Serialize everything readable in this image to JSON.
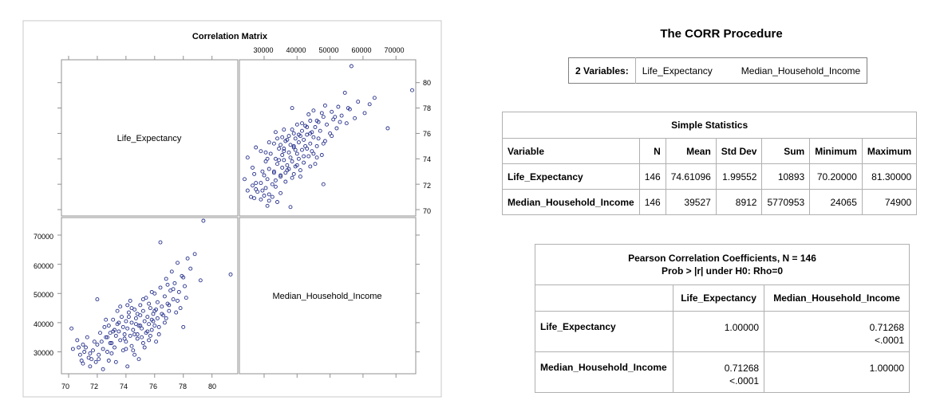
{
  "chart_data": {
    "type": "scatter",
    "title": "Correlation Matrix",
    "variables": [
      "Life_Expectancy",
      "Median_Household_Income"
    ],
    "axes": {
      "life_expectancy": {
        "range": [
          69.5,
          81.8
        ],
        "ticks": [
          70,
          72,
          74,
          76,
          78,
          80
        ]
      },
      "median_household_income": {
        "range": [
          22500,
          76000
        ],
        "ticks": [
          30000,
          40000,
          50000,
          60000,
          70000
        ]
      }
    },
    "marker_color": "#28328c",
    "points": [
      [
        70.2,
        38000
      ],
      [
        70.3,
        31000
      ],
      [
        70.6,
        34000
      ],
      [
        70.8,
        29000
      ],
      [
        70.9,
        27000
      ],
      [
        71.0,
        26000
      ],
      [
        71.1,
        30000
      ],
      [
        71.2,
        31500
      ],
      [
        71.4,
        28000
      ],
      [
        71.5,
        25000
      ],
      [
        71.6,
        27500
      ],
      [
        71.7,
        30500
      ],
      [
        71.9,
        26500
      ],
      [
        72.0,
        32500
      ],
      [
        72.0,
        48000
      ],
      [
        72.1,
        29000
      ],
      [
        72.3,
        33500
      ],
      [
        72.4,
        31000
      ],
      [
        72.5,
        38500
      ],
      [
        72.6,
        35000
      ],
      [
        72.7,
        30000
      ],
      [
        72.8,
        27000
      ],
      [
        72.8,
        39000
      ],
      [
        72.9,
        36500
      ],
      [
        73.0,
        33000
      ],
      [
        73.1,
        41000
      ],
      [
        73.2,
        31500
      ],
      [
        73.3,
        35500
      ],
      [
        73.3,
        26500
      ],
      [
        73.4,
        39500
      ],
      [
        73.5,
        37000
      ],
      [
        73.6,
        34000
      ],
      [
        73.7,
        42000
      ],
      [
        73.8,
        30500
      ],
      [
        73.9,
        36000
      ],
      [
        74.0,
        40500
      ],
      [
        74.0,
        33500
      ],
      [
        74.1,
        38000
      ],
      [
        74.1,
        25000
      ],
      [
        74.2,
        43500
      ],
      [
        74.3,
        35500
      ],
      [
        74.4,
        32000
      ],
      [
        74.4,
        40000
      ],
      [
        74.5,
        37500
      ],
      [
        74.6,
        44500
      ],
      [
        74.6,
        29000
      ],
      [
        74.7,
        41500
      ],
      [
        74.8,
        36000
      ],
      [
        74.8,
        34500
      ],
      [
        74.9,
        39000
      ],
      [
        75.0,
        46000
      ],
      [
        75.0,
        42500
      ],
      [
        75.1,
        38000
      ],
      [
        75.2,
        33000
      ],
      [
        75.2,
        44000
      ],
      [
        75.3,
        40500
      ],
      [
        75.4,
        36500
      ],
      [
        75.4,
        48500
      ],
      [
        75.5,
        42000
      ],
      [
        75.6,
        39500
      ],
      [
        75.6,
        34000
      ],
      [
        75.7,
        45000
      ],
      [
        75.8,
        41000
      ],
      [
        75.8,
        37500
      ],
      [
        75.9,
        43000
      ],
      [
        76.0,
        50000
      ],
      [
        76.0,
        39000
      ],
      [
        76.1,
        44500
      ],
      [
        76.2,
        47000
      ],
      [
        76.2,
        41500
      ],
      [
        76.3,
        36000
      ],
      [
        76.4,
        52000
      ],
      [
        76.5,
        45500
      ],
      [
        76.6,
        42500
      ],
      [
        76.7,
        49000
      ],
      [
        76.8,
        55000
      ],
      [
        76.9,
        46500
      ],
      [
        77.0,
        44000
      ],
      [
        77.1,
        51000
      ],
      [
        77.2,
        57500
      ],
      [
        77.3,
        48000
      ],
      [
        77.4,
        53500
      ],
      [
        77.6,
        60500
      ],
      [
        77.7,
        50500
      ],
      [
        77.9,
        56000
      ],
      [
        78.0,
        38500
      ],
      [
        78.1,
        52500
      ],
      [
        78.3,
        62000
      ],
      [
        78.5,
        58500
      ],
      [
        78.8,
        63500
      ],
      [
        79.2,
        54500
      ],
      [
        76.4,
        67500
      ],
      [
        79.4,
        74900
      ],
      [
        81.3,
        56500
      ],
      [
        71.3,
        35000
      ],
      [
        72.2,
        36500
      ],
      [
        73.6,
        45500
      ],
      [
        74.3,
        47500
      ],
      [
        75.3,
        31500
      ],
      [
        76.7,
        40000
      ],
      [
        77.5,
        43500
      ],
      [
        73.0,
        29500
      ],
      [
        74.9,
        27500
      ],
      [
        75.8,
        50500
      ],
      [
        72.6,
        41000
      ],
      [
        73.8,
        38500
      ],
      [
        74.6,
        36000
      ],
      [
        75.5,
        37000
      ],
      [
        76.1,
        33500
      ],
      [
        77.0,
        46000
      ],
      [
        78.2,
        48500
      ],
      [
        72.1,
        27500
      ],
      [
        71.0,
        32500
      ],
      [
        73.4,
        44000
      ],
      [
        74.2,
        42000
      ],
      [
        75.1,
        35000
      ],
      [
        76.3,
        38500
      ],
      [
        76.9,
        53000
      ],
      [
        77.8,
        45000
      ],
      [
        73.2,
        37500
      ],
      [
        74.7,
        39500
      ],
      [
        75.6,
        46500
      ],
      [
        72.9,
        33000
      ],
      [
        74.0,
        31000
      ],
      [
        76.5,
        43000
      ],
      [
        75.9,
        40500
      ],
      [
        73.5,
        40000
      ],
      [
        74.8,
        43000
      ],
      [
        71.8,
        33500
      ],
      [
        72.4,
        24065
      ],
      [
        77.3,
        51500
      ],
      [
        75.2,
        48000
      ],
      [
        74.4,
        45000
      ],
      [
        73.9,
        34500
      ],
      [
        76.8,
        41500
      ],
      [
        75.7,
        35500
      ],
      [
        72.7,
        35000
      ],
      [
        73.1,
        37000
      ],
      [
        74.5,
        30500
      ],
      [
        75.0,
        39000
      ],
      [
        76.0,
        44000
      ],
      [
        78.0,
        55500
      ],
      [
        71.5,
        29500
      ],
      [
        77.6,
        47500
      ],
      [
        74.1,
        46000
      ],
      [
        70.7,
        31500
      ]
    ]
  },
  "matrix": {
    "title": "Correlation Matrix",
    "diag_labels": [
      "Life_Expectancy",
      "Median_Household_Income"
    ],
    "top_ticks": [
      "30000",
      "40000",
      "50000",
      "60000",
      "70000"
    ],
    "right_ticks": [
      "80",
      "78",
      "76",
      "74",
      "72",
      "70"
    ],
    "left_ticks": [
      "70000",
      "60000",
      "50000",
      "40000",
      "30000"
    ],
    "bottom_ticks": [
      "70",
      "72",
      "74",
      "76",
      "78",
      "80"
    ]
  },
  "report": {
    "title": "The CORR Procedure",
    "variables_label": "2  Variables:",
    "variables": [
      "Life_Expectancy",
      "Median_Household_Income"
    ],
    "simple_stats": {
      "caption": "Simple Statistics",
      "headers": [
        "Variable",
        "N",
        "Mean",
        "Std Dev",
        "Sum",
        "Minimum",
        "Maximum"
      ],
      "rows": [
        [
          "Life_Expectancy",
          "146",
          "74.61096",
          "1.99552",
          "10893",
          "70.20000",
          "81.30000"
        ],
        [
          "Median_Household_Income",
          "146",
          "39527",
          "8912",
          "5770953",
          "24065",
          "74900"
        ]
      ]
    },
    "pearson": {
      "caption_line1": "Pearson Correlation Coefficients, N = 146",
      "caption_line2": "Prob > |r| under H0: Rho=0",
      "headers": [
        "Life_Expectancy",
        "Median_Household_Income"
      ],
      "rows": [
        {
          "name": "Life_Expectancy",
          "cells": [
            [
              "1.00000",
              ""
            ],
            [
              "0.71268",
              "<.0001"
            ]
          ]
        },
        {
          "name": "Median_Household_Income",
          "cells": [
            [
              "0.71268",
              "<.0001"
            ],
            [
              "1.00000",
              ""
            ]
          ]
        }
      ]
    }
  }
}
